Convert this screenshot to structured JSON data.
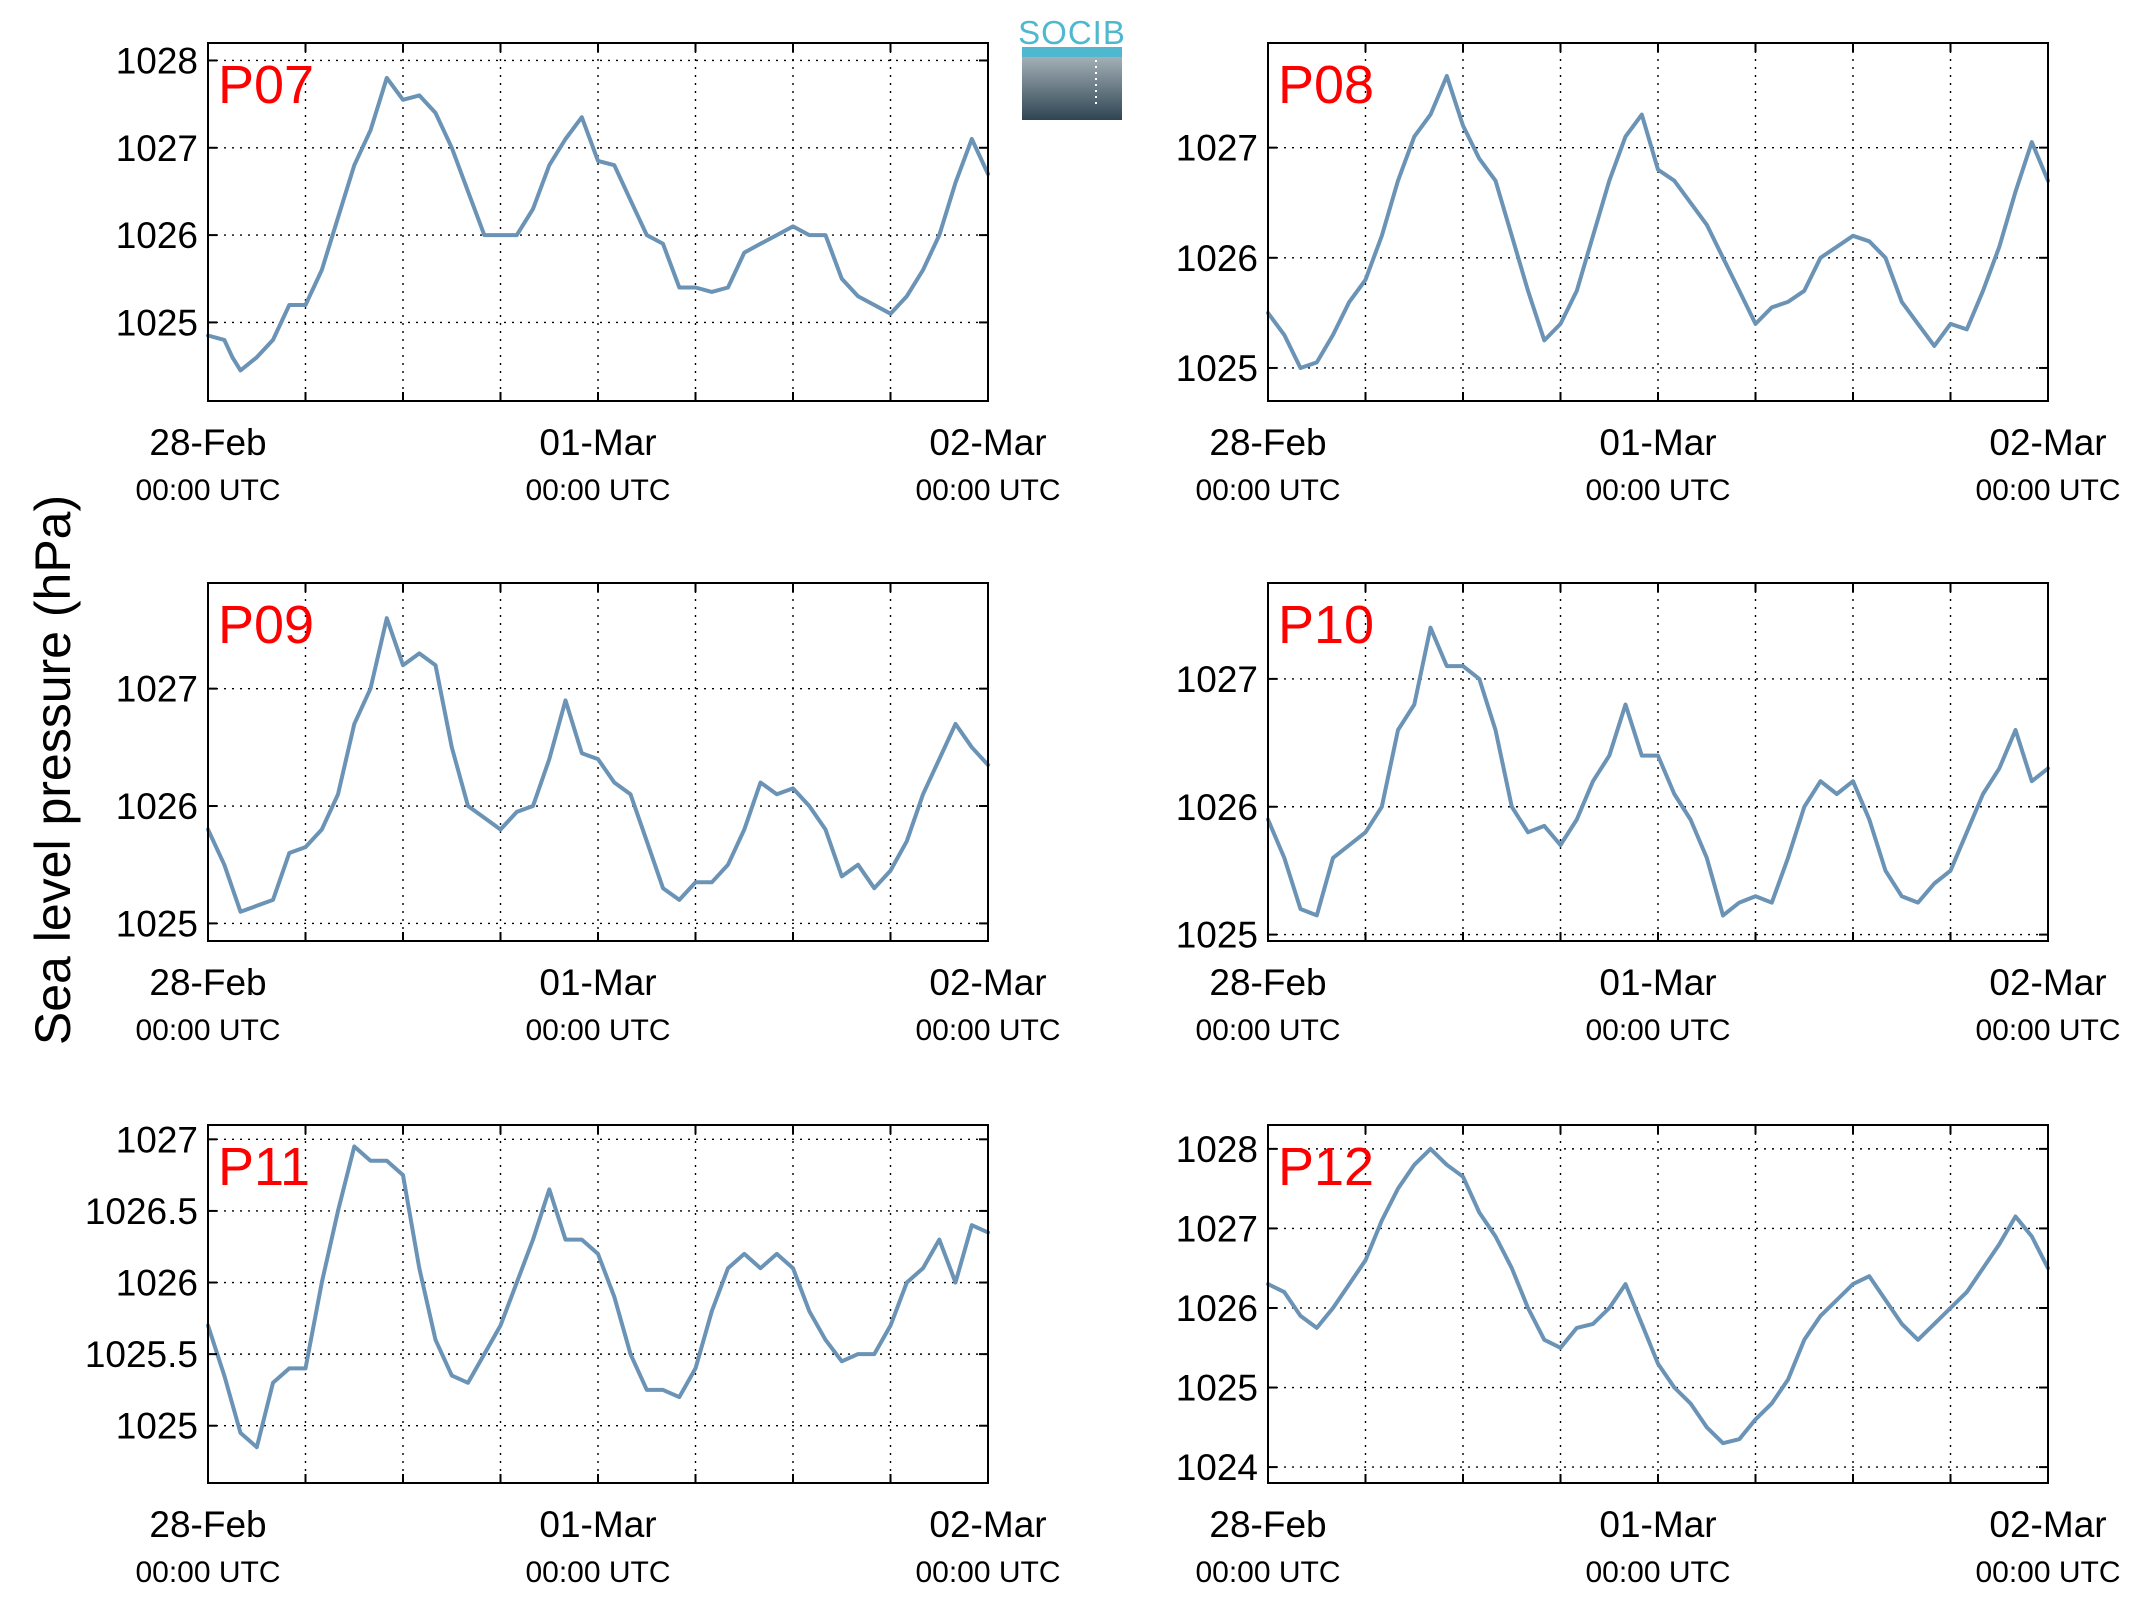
{
  "figure": {
    "ylabel": "Sea level pressure (hPa)",
    "logo_text": "SOCIB"
  },
  "colors": {
    "series": "#6a93b5",
    "panel_label": "#ff0000",
    "logo_accent": "#4fb8cf",
    "logo_dark": "#2e4552"
  },
  "chart_data": [
    {
      "type": "line",
      "panel_label": "P07",
      "xlim_hours": [
        0,
        48
      ],
      "x_ticks": [
        {
          "date": "28-Feb",
          "time": "00:00 UTC"
        },
        {
          "date": "01-Mar",
          "time": "00:00 UTC"
        },
        {
          "date": "02-Mar",
          "time": "00:00 UTC"
        }
      ],
      "ylim": [
        1024.1,
        1028.2
      ],
      "yticks": [
        1025,
        1026,
        1027,
        1028
      ],
      "grid": true,
      "series": [
        {
          "x_hours": [
            0,
            1,
            1.5,
            2,
            3,
            4,
            5,
            6,
            7,
            8,
            9,
            10,
            11,
            12,
            13,
            14,
            15,
            16,
            17,
            18,
            19,
            20,
            21,
            22,
            23,
            24,
            25,
            26,
            27,
            28,
            29,
            30,
            31,
            32,
            33,
            34,
            35,
            36,
            37,
            38,
            39,
            40,
            41,
            42,
            43,
            44,
            45,
            46,
            47,
            48
          ],
          "values": [
            1024.85,
            1024.8,
            1024.6,
            1024.45,
            1024.6,
            1024.8,
            1025.2,
            1025.2,
            1025.6,
            1026.2,
            1026.8,
            1027.2,
            1027.8,
            1027.55,
            1027.6,
            1027.4,
            1027.0,
            1026.5,
            1026.0,
            1026.0,
            1026.0,
            1026.3,
            1026.8,
            1027.1,
            1027.35,
            1026.85,
            1026.8,
            1026.4,
            1026.0,
            1025.9,
            1025.4,
            1025.4,
            1025.35,
            1025.4,
            1025.8,
            1025.9,
            1026.0,
            1026.1,
            1026.0,
            1026.0,
            1025.5,
            1025.3,
            1025.2,
            1025.1,
            1025.3,
            1025.6,
            1026.0,
            1026.6,
            1027.1,
            1026.7
          ]
        }
      ]
    },
    {
      "type": "line",
      "panel_label": "P08",
      "xlim_hours": [
        0,
        48
      ],
      "x_ticks": [
        {
          "date": "28-Feb",
          "time": "00:00 UTC"
        },
        {
          "date": "01-Mar",
          "time": "00:00 UTC"
        },
        {
          "date": "02-Mar",
          "time": "00:00 UTC"
        }
      ],
      "ylim": [
        1024.7,
        1027.95
      ],
      "yticks": [
        1025,
        1026,
        1027
      ],
      "grid": true,
      "series": [
        {
          "x_hours": [
            0,
            1,
            2,
            3,
            4,
            5,
            6,
            7,
            8,
            9,
            10,
            11,
            12,
            13,
            14,
            15,
            16,
            17,
            18,
            19,
            20,
            21,
            22,
            23,
            24,
            25,
            26,
            27,
            28,
            29,
            30,
            31,
            32,
            33,
            34,
            35,
            36,
            37,
            38,
            39,
            40,
            41,
            42,
            43,
            44,
            45,
            46,
            47,
            48
          ],
          "values": [
            1025.5,
            1025.3,
            1025.0,
            1025.05,
            1025.3,
            1025.6,
            1025.8,
            1026.2,
            1026.7,
            1027.1,
            1027.3,
            1027.65,
            1027.2,
            1026.9,
            1026.7,
            1026.2,
            1025.7,
            1025.25,
            1025.4,
            1025.7,
            1026.2,
            1026.7,
            1027.1,
            1027.3,
            1026.8,
            1026.7,
            1026.5,
            1026.3,
            1026.0,
            1025.7,
            1025.4,
            1025.55,
            1025.6,
            1025.7,
            1026.0,
            1026.1,
            1026.2,
            1026.15,
            1026.0,
            1025.6,
            1025.4,
            1025.2,
            1025.4,
            1025.35,
            1025.7,
            1026.1,
            1026.6,
            1027.05,
            1026.7
          ]
        }
      ]
    },
    {
      "type": "line",
      "panel_label": "P09",
      "xlim_hours": [
        0,
        48
      ],
      "x_ticks": [
        {
          "date": "28-Feb",
          "time": "00:00 UTC"
        },
        {
          "date": "01-Mar",
          "time": "00:00 UTC"
        },
        {
          "date": "02-Mar",
          "time": "00:00 UTC"
        }
      ],
      "ylim": [
        1024.85,
        1027.9
      ],
      "yticks": [
        1025,
        1026,
        1027
      ],
      "grid": true,
      "series": [
        {
          "x_hours": [
            0,
            1,
            2,
            3,
            4,
            5,
            6,
            7,
            8,
            9,
            10,
            11,
            12,
            13,
            14,
            15,
            16,
            17,
            18,
            19,
            20,
            21,
            22,
            23,
            24,
            25,
            26,
            27,
            28,
            29,
            30,
            31,
            32,
            33,
            34,
            35,
            36,
            37,
            38,
            39,
            40,
            41,
            42,
            43,
            44,
            45,
            46,
            47,
            48
          ],
          "values": [
            1025.8,
            1025.5,
            1025.1,
            1025.15,
            1025.2,
            1025.6,
            1025.65,
            1025.8,
            1026.1,
            1026.7,
            1027.0,
            1027.6,
            1027.2,
            1027.3,
            1027.2,
            1026.5,
            1026.0,
            1025.9,
            1025.8,
            1025.95,
            1026.0,
            1026.4,
            1026.9,
            1026.45,
            1026.4,
            1026.2,
            1026.1,
            1025.7,
            1025.3,
            1025.2,
            1025.35,
            1025.35,
            1025.5,
            1025.8,
            1026.2,
            1026.1,
            1026.15,
            1026.0,
            1025.8,
            1025.4,
            1025.5,
            1025.3,
            1025.45,
            1025.7,
            1026.1,
            1026.4,
            1026.7,
            1026.5,
            1026.35
          ]
        }
      ]
    },
    {
      "type": "line",
      "panel_label": "P10",
      "xlim_hours": [
        0,
        48
      ],
      "x_ticks": [
        {
          "date": "28-Feb",
          "time": "00:00 UTC"
        },
        {
          "date": "01-Mar",
          "time": "00:00 UTC"
        },
        {
          "date": "02-Mar",
          "time": "00:00 UTC"
        }
      ],
      "ylim": [
        1024.95,
        1027.75
      ],
      "yticks": [
        1025,
        1026,
        1027
      ],
      "grid": true,
      "series": [
        {
          "x_hours": [
            0,
            1,
            2,
            3,
            4,
            5,
            6,
            7,
            8,
            9,
            10,
            11,
            12,
            13,
            14,
            15,
            16,
            17,
            18,
            19,
            20,
            21,
            22,
            23,
            24,
            25,
            26,
            27,
            28,
            29,
            30,
            31,
            32,
            33,
            34,
            35,
            36,
            37,
            38,
            39,
            40,
            41,
            42,
            43,
            44,
            45,
            46,
            47,
            48
          ],
          "values": [
            1025.9,
            1025.6,
            1025.2,
            1025.15,
            1025.6,
            1025.7,
            1025.8,
            1026.0,
            1026.6,
            1026.8,
            1027.4,
            1027.1,
            1027.1,
            1027.0,
            1026.6,
            1026.0,
            1025.8,
            1025.85,
            1025.7,
            1025.9,
            1026.2,
            1026.4,
            1026.8,
            1026.4,
            1026.4,
            1026.1,
            1025.9,
            1025.6,
            1025.15,
            1025.25,
            1025.3,
            1025.25,
            1025.6,
            1026.0,
            1026.2,
            1026.1,
            1026.2,
            1025.9,
            1025.5,
            1025.3,
            1025.25,
            1025.4,
            1025.5,
            1025.8,
            1026.1,
            1026.3,
            1026.6,
            1026.2,
            1026.3
          ]
        }
      ]
    },
    {
      "type": "line",
      "panel_label": "P11",
      "xlim_hours": [
        0,
        48
      ],
      "x_ticks": [
        {
          "date": "28-Feb",
          "time": "00:00 UTC"
        },
        {
          "date": "01-Mar",
          "time": "00:00 UTC"
        },
        {
          "date": "02-Mar",
          "time": "00:00 UTC"
        }
      ],
      "ylim": [
        1024.6,
        1027.1
      ],
      "yticks": [
        1025,
        1025.5,
        1026,
        1026.5,
        1027
      ],
      "grid": true,
      "series": [
        {
          "x_hours": [
            0,
            1,
            2,
            3,
            4,
            5,
            6,
            7,
            8,
            9,
            10,
            11,
            12,
            13,
            14,
            15,
            16,
            17,
            18,
            19,
            20,
            21,
            22,
            23,
            24,
            25,
            26,
            27,
            28,
            29,
            30,
            31,
            32,
            33,
            34,
            35,
            36,
            37,
            38,
            39,
            40,
            41,
            42,
            43,
            44,
            45,
            46,
            47,
            48
          ],
          "values": [
            1025.7,
            1025.35,
            1024.95,
            1024.85,
            1025.3,
            1025.4,
            1025.4,
            1026.0,
            1026.5,
            1026.95,
            1026.85,
            1026.85,
            1026.75,
            1026.1,
            1025.6,
            1025.35,
            1025.3,
            1025.5,
            1025.7,
            1026.0,
            1026.3,
            1026.65,
            1026.3,
            1026.3,
            1026.2,
            1025.9,
            1025.5,
            1025.25,
            1025.25,
            1025.2,
            1025.4,
            1025.8,
            1026.1,
            1026.2,
            1026.1,
            1026.2,
            1026.1,
            1025.8,
            1025.6,
            1025.45,
            1025.5,
            1025.5,
            1025.7,
            1026.0,
            1026.1,
            1026.3,
            1026.0,
            1026.4,
            1026.35
          ]
        }
      ]
    },
    {
      "type": "line",
      "panel_label": "P12",
      "xlim_hours": [
        0,
        48
      ],
      "x_ticks": [
        {
          "date": "28-Feb",
          "time": "00:00 UTC"
        },
        {
          "date": "01-Mar",
          "time": "00:00 UTC"
        },
        {
          "date": "02-Mar",
          "time": "00:00 UTC"
        }
      ],
      "ylim": [
        1023.8,
        1028.3
      ],
      "yticks": [
        1024,
        1025,
        1026,
        1027,
        1028
      ],
      "grid": true,
      "series": [
        {
          "x_hours": [
            0,
            1,
            2,
            3,
            4,
            5,
            6,
            7,
            8,
            9,
            10,
            11,
            12,
            13,
            14,
            15,
            16,
            17,
            18,
            19,
            20,
            21,
            22,
            23,
            24,
            25,
            26,
            27,
            28,
            29,
            30,
            31,
            32,
            33,
            34,
            35,
            36,
            37,
            38,
            39,
            40,
            41,
            42,
            43,
            44,
            45,
            46,
            47,
            48
          ],
          "values": [
            1026.3,
            1026.2,
            1025.9,
            1025.75,
            1026.0,
            1026.3,
            1026.6,
            1027.1,
            1027.5,
            1027.8,
            1028.0,
            1027.8,
            1027.65,
            1027.2,
            1026.9,
            1026.5,
            1026.0,
            1025.6,
            1025.5,
            1025.75,
            1025.8,
            1026.0,
            1026.3,
            1025.8,
            1025.3,
            1025.0,
            1024.8,
            1024.5,
            1024.3,
            1024.35,
            1024.6,
            1024.8,
            1025.1,
            1025.6,
            1025.9,
            1026.1,
            1026.3,
            1026.4,
            1026.1,
            1025.8,
            1025.6,
            1025.8,
            1026.0,
            1026.2,
            1026.5,
            1026.8,
            1027.15,
            1026.9,
            1026.5
          ]
        }
      ]
    }
  ]
}
